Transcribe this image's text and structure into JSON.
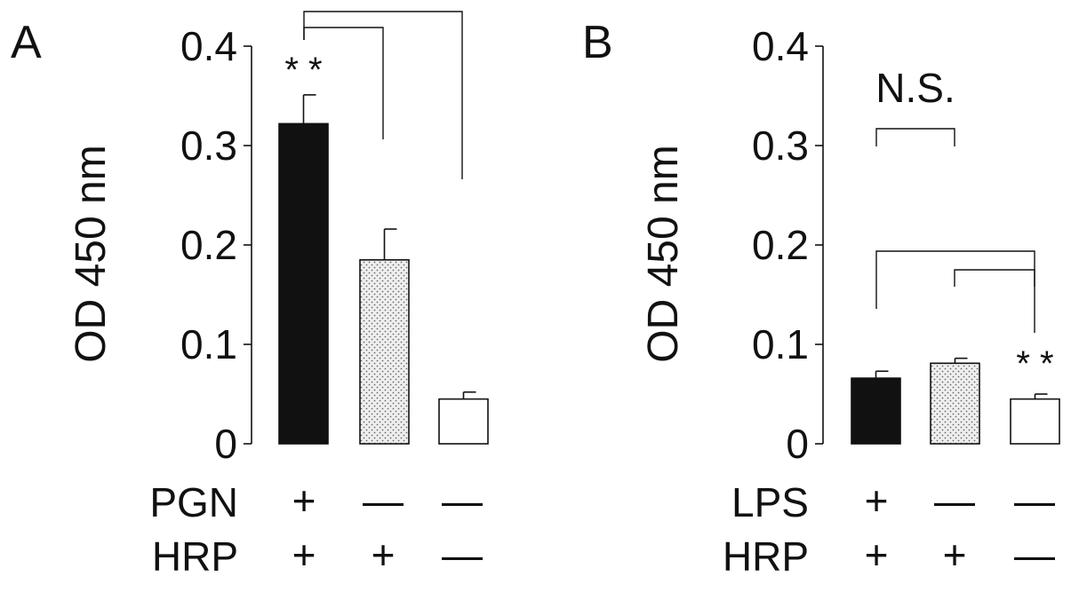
{
  "chart_data": [
    {
      "type": "bar",
      "panel": "A",
      "ylabel": "OD 450 nm",
      "ylim": [
        0,
        0.4
      ],
      "yticks": [
        0,
        0.1,
        0.2,
        0.3,
        0.4
      ],
      "ytick_labels": [
        "0",
        "0.1",
        "0.2",
        "0.3",
        "0.4"
      ],
      "grid": false,
      "bars": [
        {
          "value": 0.322,
          "error": 0.029,
          "fill": "solid-black",
          "significance": "**"
        },
        {
          "value": 0.185,
          "error": 0.031,
          "fill": "dotted",
          "significance": ""
        },
        {
          "value": 0.045,
          "error": 0.007,
          "fill": "white",
          "significance": ""
        }
      ],
      "conditions": [
        {
          "label": "PGN",
          "signs": [
            "+",
            "—",
            "—"
          ]
        },
        {
          "label": "HRP",
          "signs": [
            "+",
            "+",
            "—"
          ]
        }
      ],
      "brackets": [
        {
          "from_bar": 0,
          "to_bar": 2,
          "label": ""
        },
        {
          "from_bar": 0,
          "to_bar": 1,
          "label": ""
        }
      ]
    },
    {
      "type": "bar",
      "panel": "B",
      "ylabel": "OD 450 nm",
      "ylim": [
        0,
        0.4
      ],
      "yticks": [
        0,
        0.1,
        0.2,
        0.3,
        0.4
      ],
      "ytick_labels": [
        "0",
        "0.1",
        "0.2",
        "0.3",
        "0.4"
      ],
      "grid": false,
      "bars": [
        {
          "value": 0.066,
          "error": 0.007,
          "fill": "solid-black",
          "significance": ""
        },
        {
          "value": 0.081,
          "error": 0.005,
          "fill": "dotted",
          "significance": ""
        },
        {
          "value": 0.045,
          "error": 0.005,
          "fill": "white",
          "significance": "**"
        }
      ],
      "conditions": [
        {
          "label": "LPS",
          "signs": [
            "+",
            "—",
            "—"
          ]
        },
        {
          "label": "HRP",
          "signs": [
            "+",
            "+",
            "—"
          ]
        }
      ],
      "brackets": [
        {
          "from_bar": 0,
          "to_bar": 1,
          "label": "N.S."
        },
        {
          "from_bar": 0,
          "to_bar": 2,
          "label": ""
        },
        {
          "from_bar": 1,
          "to_bar": 2,
          "label": ""
        }
      ]
    }
  ],
  "colors": {
    "ink": "#111111",
    "dotted_bg": "#efefef",
    "dot": "#6a6a6a",
    "white_bar": "#ffffff"
  }
}
